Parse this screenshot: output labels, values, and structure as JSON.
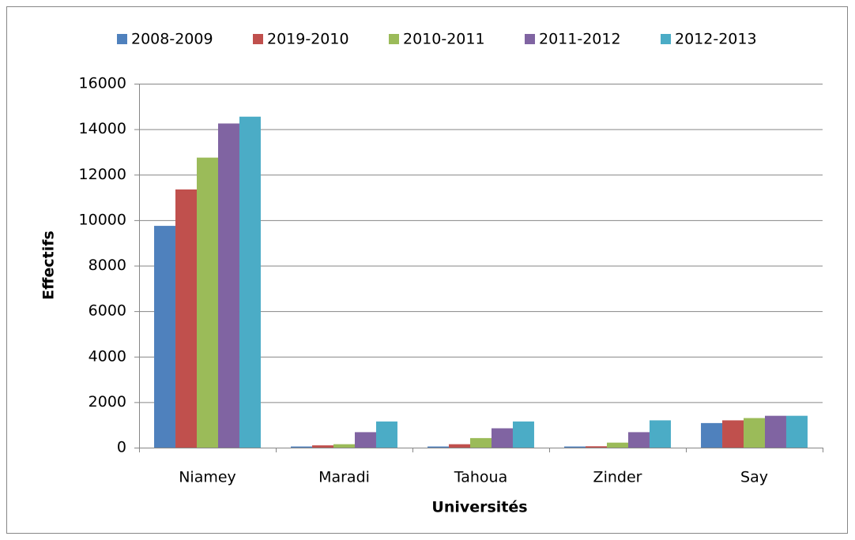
{
  "chart_data": {
    "type": "bar",
    "x_label": "Universités",
    "y_label": "Effectifs",
    "categories": [
      "Niamey",
      "Maradi",
      "Tahoua",
      "Zinder",
      "Say"
    ],
    "series": [
      {
        "name": "2008-2009",
        "color": "#4f81bd",
        "values": [
          9750,
          50,
          50,
          50,
          1080
        ]
      },
      {
        "name": "2019-2010",
        "color": "#c0504d",
        "values": [
          11350,
          100,
          150,
          60,
          1200
        ]
      },
      {
        "name": "2010-2011",
        "color": "#9bbb59",
        "values": [
          12750,
          150,
          420,
          220,
          1300
        ]
      },
      {
        "name": "2011-2012",
        "color": "#8064a2",
        "values": [
          14250,
          680,
          850,
          680,
          1400
        ]
      },
      {
        "name": "2012-2013",
        "color": "#4bacc6",
        "values": [
          14550,
          1150,
          1150,
          1200,
          1400
        ]
      }
    ],
    "ylim": [
      0,
      16000
    ],
    "yticks": [
      0,
      2000,
      4000,
      6000,
      8000,
      10000,
      12000,
      14000,
      16000
    ],
    "grid": true,
    "legend": "top"
  }
}
